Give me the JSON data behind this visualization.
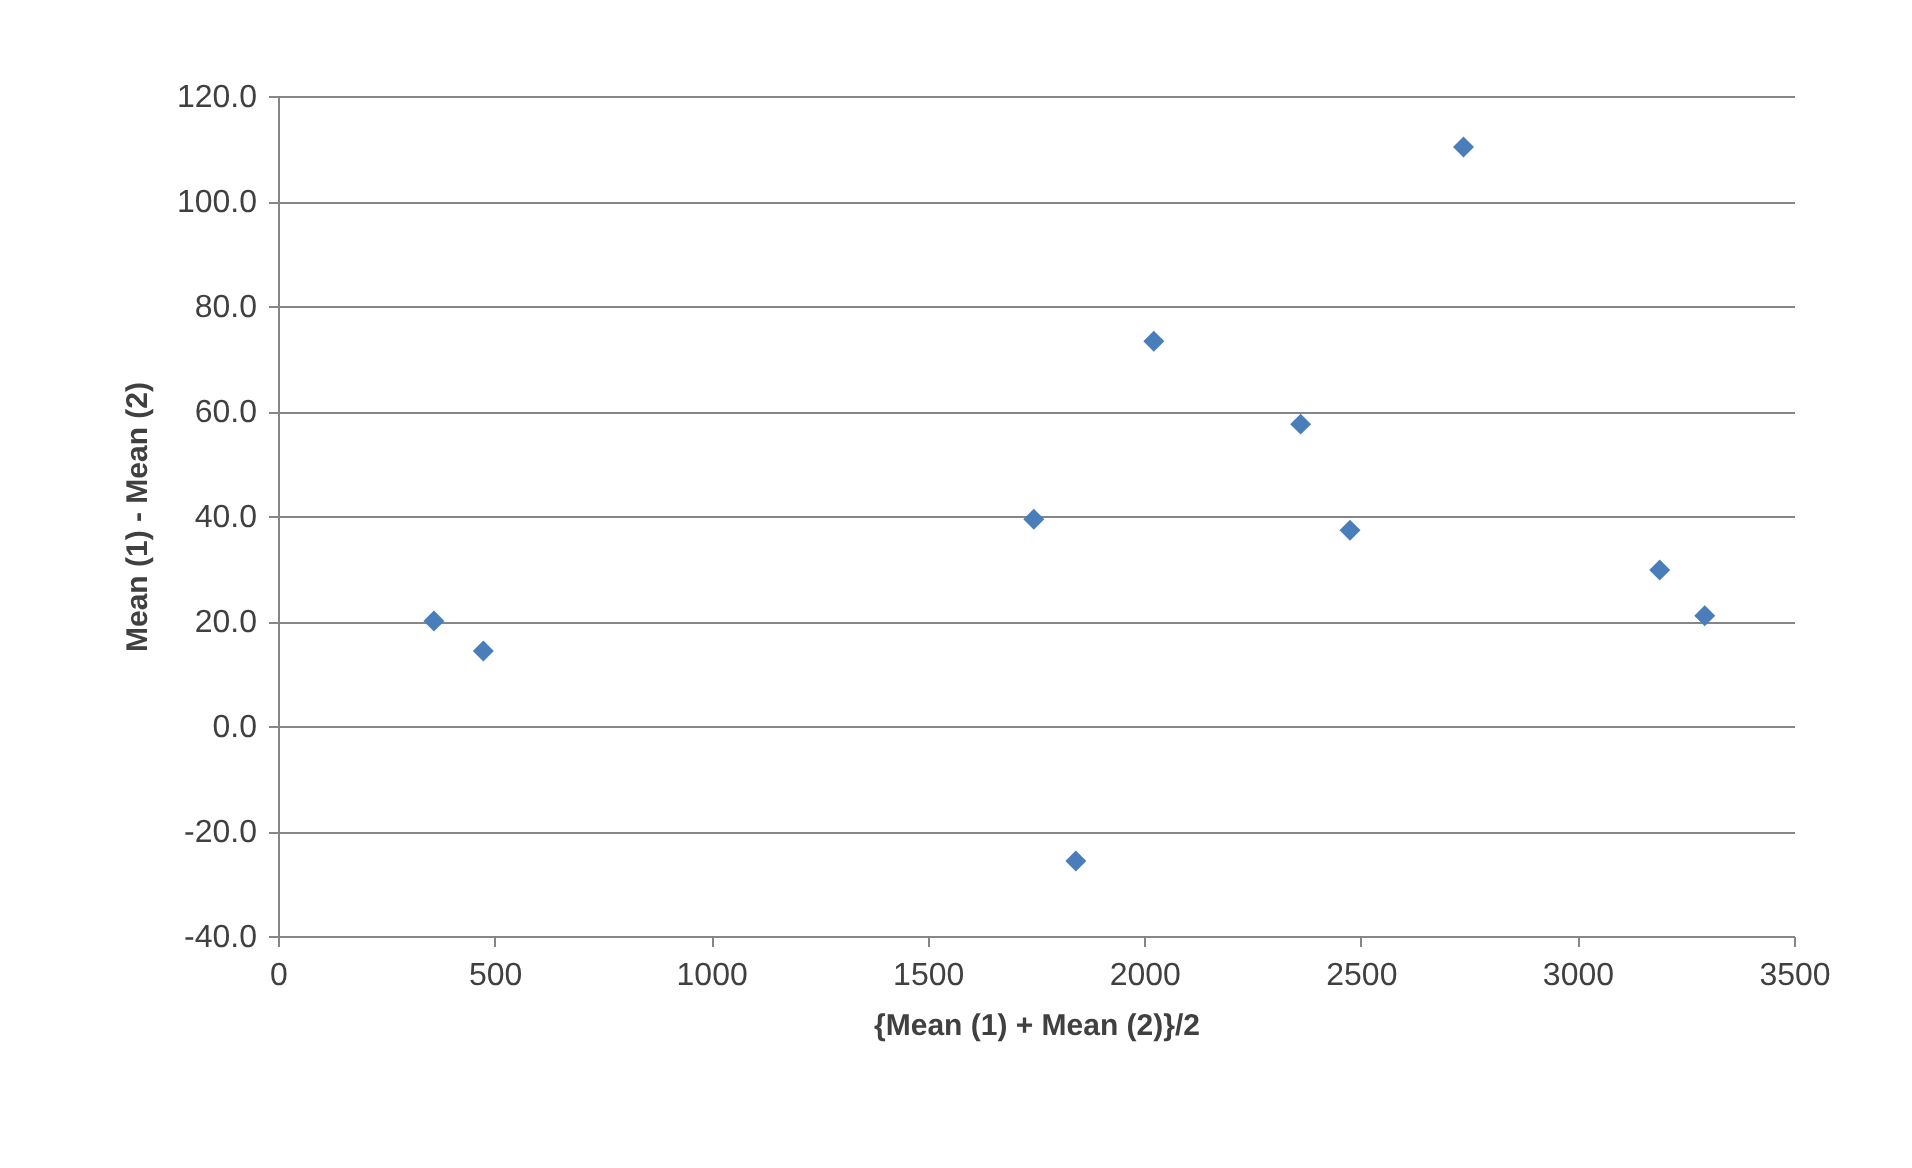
{
  "chart_data": {
    "type": "scatter",
    "xlabel": "{Mean (1) + Mean (2)}/2",
    "ylabel": "Mean (1) - Mean (2)",
    "x": [
      360,
      474,
      1745,
      1842,
      2022,
      2361,
      2475,
      2737,
      3190,
      3294
    ],
    "series": [
      {
        "color": "#4a7ebb",
        "values": [
          20.0,
          14.3,
          39.4,
          -25.7,
          73.3,
          57.5,
          37.3,
          110.3,
          29.7,
          21.0
        ]
      }
    ],
    "xlim": [
      0,
      3500
    ],
    "xticks": [
      0,
      500,
      1000,
      1500,
      2000,
      2500,
      3000,
      3500
    ],
    "ylim": [
      -40,
      120
    ],
    "yticks": [
      {
        "value": -40,
        "label": "-40.0"
      },
      {
        "value": -20,
        "label": "-20.0"
      },
      {
        "value": 0,
        "label": "0.0"
      },
      {
        "value": 20,
        "label": "20.0"
      },
      {
        "value": 40,
        "label": "40.0"
      },
      {
        "value": 60,
        "label": "60.0"
      },
      {
        "value": 80,
        "label": "80.0"
      },
      {
        "value": 100,
        "label": "100.0"
      },
      {
        "value": 120,
        "label": "120.0"
      }
    ],
    "grid": "y",
    "marker": "diamond",
    "legend": false
  }
}
